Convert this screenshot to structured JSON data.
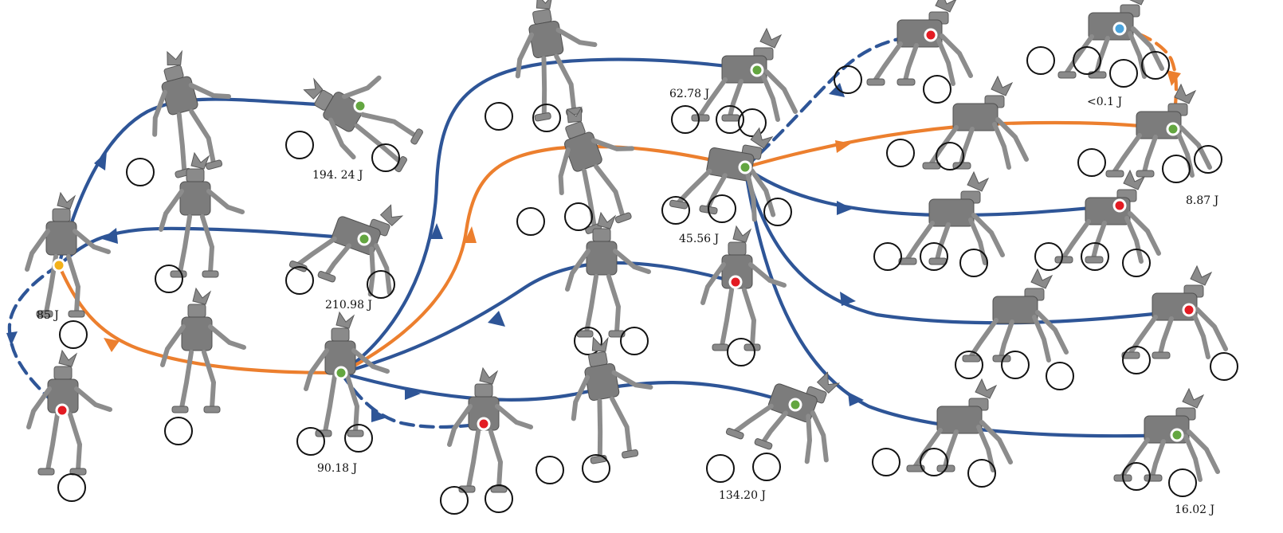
{
  "colors": {
    "edge_blue": "#2e5597",
    "edge_orange": "#ec7f2e",
    "state_green": "#63a640",
    "state_red": "#e31b23",
    "state_yellow": "#f3b11a",
    "state_lightblue": "#4aa3dc",
    "robot_gray": "#8a8a8a",
    "contact_ring": "#111111"
  },
  "icons": {
    "robot": "humanoid-robot-icon",
    "contact": "foot-contact-circle-icon",
    "state": "state-dot-icon",
    "arrow": "arrowhead-icon"
  },
  "energy_labels": {
    "start": "85 J",
    "top_left": "194. 24 J",
    "mid_left": "210.98 J",
    "hub_left": "90.18 J",
    "top_mid": "62.78 J",
    "hub_right": "45.56 J",
    "bottom_mid": "134.20 J",
    "top_right": "<0.1 J",
    "right_upper": "8.87 J",
    "bottom_right": "16.02 J"
  }
}
